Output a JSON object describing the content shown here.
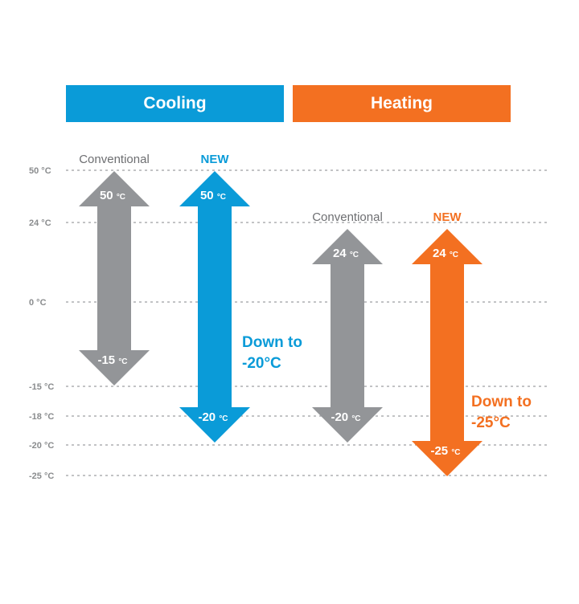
{
  "colors": {
    "cooling": "#0a9bd8",
    "heating": "#f37021",
    "conventional": "#939598",
    "axis_text": "#8a8c8e",
    "grid": "#9d9fa2"
  },
  "headers": {
    "cooling": "Cooling",
    "heating": "Heating"
  },
  "chart_data": {
    "type": "range-arrows",
    "y_ticks": [
      {
        "value": 50,
        "label": "50 °C"
      },
      {
        "value": 24,
        "label": "24 °C"
      },
      {
        "value": 0,
        "label": "0 °C"
      },
      {
        "value": -15,
        "label": "-15 °C"
      },
      {
        "value": -18,
        "label": "-18 °C"
      },
      {
        "value": -20,
        "label": "-20 °C"
      },
      {
        "value": -25,
        "label": "-25 °C"
      }
    ],
    "series": [
      {
        "group": "Cooling",
        "name": "Conventional",
        "max": 50,
        "min": -15,
        "max_label": "50",
        "min_label": "-15",
        "unit": "°C",
        "color": "conventional",
        "annotation": []
      },
      {
        "group": "Cooling",
        "name": "NEW",
        "max": 50,
        "min": -20,
        "max_label": "50",
        "min_label": "-20",
        "unit": "°C",
        "color": "cooling",
        "annotation": [
          "Down to",
          "-20°C"
        ]
      },
      {
        "group": "Heating",
        "name": "Conventional",
        "max": 24,
        "min": -20,
        "max_label": "24",
        "min_label": "-20",
        "unit": "°C",
        "color": "conventional",
        "annotation": []
      },
      {
        "group": "Heating",
        "name": "NEW",
        "max": 24,
        "min": -25,
        "max_label": "24",
        "min_label": "-25",
        "unit": "°C",
        "color": "heating",
        "annotation": [
          "Down to",
          "-25°C"
        ]
      }
    ]
  }
}
